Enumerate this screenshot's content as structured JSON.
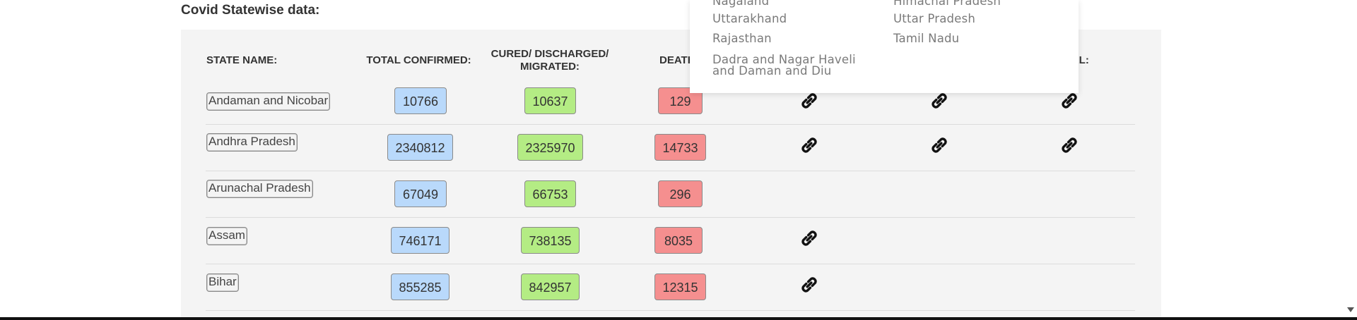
{
  "section": {
    "title": "Covid Statewise data:"
  },
  "table": {
    "headers": {
      "state": "STATE NAME:",
      "confirmed": "TOTAL CONFIRMED:",
      "cured_line1": "CURED/ DISCHARGED/",
      "cured_line2": "MIGRATED:",
      "deaths": "DEATH",
      "url": "URL:"
    },
    "rows": [
      {
        "state": "Andaman and Nicobar",
        "confirmed": "10766",
        "cured": "10637",
        "deaths": "129"
      },
      {
        "state": "Andhra Pradesh",
        "confirmed": "2340812",
        "cured": "2325970",
        "deaths": "14733"
      },
      {
        "state": "Arunachal Pradesh",
        "confirmed": "67049",
        "cured": "66753",
        "deaths": "296"
      },
      {
        "state": "Assam",
        "confirmed": "746171",
        "cured": "738135",
        "deaths": "8035"
      },
      {
        "state": "Bihar",
        "confirmed": "855285",
        "cured": "842957",
        "deaths": "12315"
      }
    ]
  },
  "dropdown": {
    "col1": [
      "Nagaland",
      "Uttarakhand",
      "Rajasthan",
      "Dadra and Nagar Haveli",
      "and Daman and Diu"
    ],
    "col2": [
      "Himachal Pradesh",
      "Uttar Pradesh",
      "Tamil Nadu"
    ]
  },
  "icons": {
    "link": "link-icon",
    "scroll_down": "scroll-down-arrow"
  },
  "colors": {
    "confirmed": "#b9d9fb",
    "cured": "#b4ec84",
    "deaths": "#f58f8f"
  }
}
